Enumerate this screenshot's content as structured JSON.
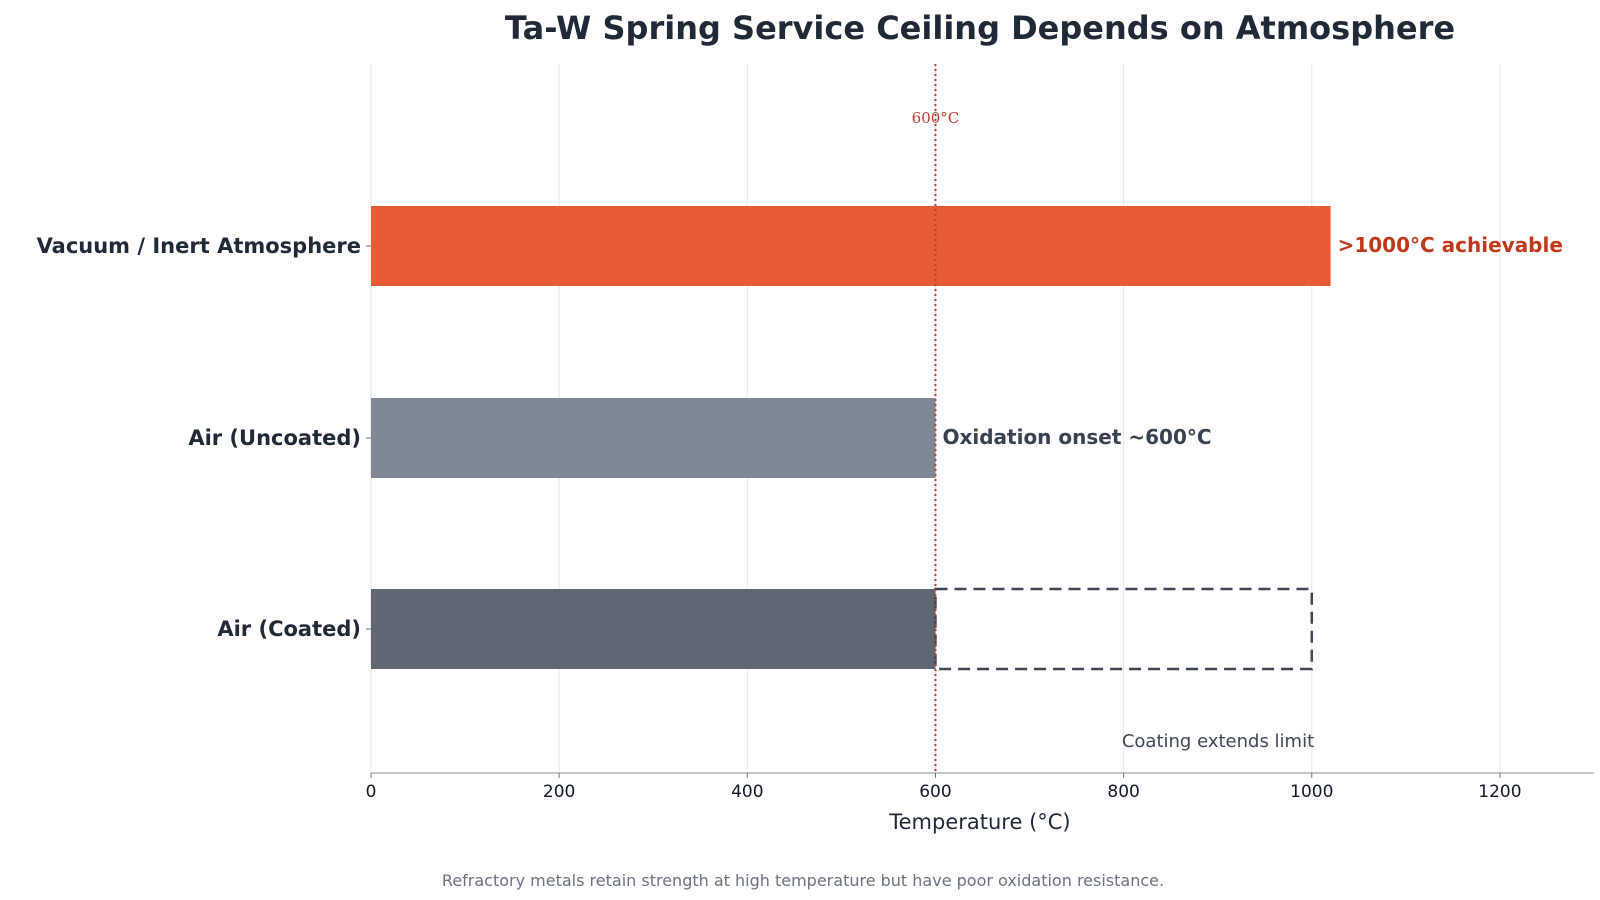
{
  "chart_data": {
    "type": "bar",
    "orientation": "horizontal",
    "title": "Ta-W Spring Service Ceiling Depends on Atmosphere",
    "xlabel": "Temperature (°C)",
    "ylabel": "",
    "xlim": [
      0,
      1300
    ],
    "xticks": [
      0,
      200,
      400,
      600,
      800,
      1000,
      1200
    ],
    "grid": "vertical",
    "categories": [
      "Vacuum / Inert Atmosphere",
      "Air (Uncoated)",
      "Air (Coated)"
    ],
    "values": [
      1020,
      600,
      600
    ],
    "colors": [
      "#e85c35",
      "#7f8896",
      "#5f6775"
    ],
    "bar_labels": [
      {
        "text": ">1000°C achievable",
        "color": "#c0391b"
      },
      {
        "text": "Oxidation onset ~600°C",
        "color": "#374151"
      },
      {
        "text": "",
        "color": "#374151"
      }
    ],
    "extension": {
      "category": "Air (Coated)",
      "from": 600,
      "to": 1000,
      "style": "dashed",
      "color": "#3f4756"
    },
    "reference_line": {
      "x": 600,
      "label": "600°C",
      "color": "#c0392b",
      "style": "dotted"
    },
    "annotations": [
      {
        "text": "Coating extends limit",
        "x": 1000,
        "color": "#3f4756"
      }
    ],
    "caption": "Refractory metals retain strength at high temperature but have poor oxidation resistance."
  }
}
